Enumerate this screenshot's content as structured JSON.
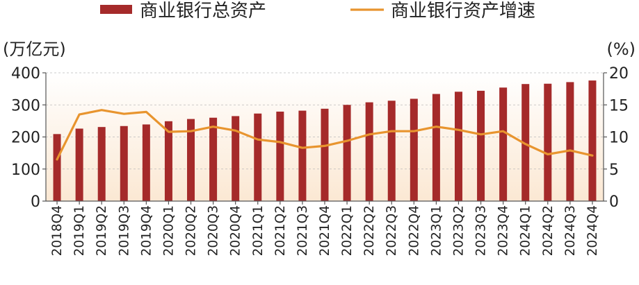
{
  "chart_data": {
    "type": "bar",
    "categories": [
      "2018Q4",
      "2019Q1",
      "2019Q2",
      "2019Q3",
      "2019Q4",
      "2020Q1",
      "2020Q2",
      "2020Q3",
      "2020Q4",
      "2021Q1",
      "2021Q2",
      "2021Q3",
      "2021Q4",
      "2022Q1",
      "2022Q2",
      "2022Q3",
      "2022Q4",
      "2023Q1",
      "2023Q2",
      "2023Q3",
      "2023Q4",
      "2024Q1",
      "2024Q2",
      "2024Q3",
      "2024Q4"
    ],
    "series": [
      {
        "name": "商业银行总资产",
        "type": "bar",
        "axis": "left",
        "color": "#a52a2a",
        "values": [
          209,
          226,
          231,
          234,
          239,
          249,
          256,
          260,
          265,
          273,
          279,
          282,
          288,
          300,
          308,
          313,
          319,
          334,
          341,
          344,
          354,
          365,
          366,
          371,
          376
        ]
      },
      {
        "name": "商业银行资产增速",
        "type": "line",
        "axis": "right",
        "color": "#e8942e",
        "values": [
          6.5,
          13.5,
          14.2,
          13.6,
          13.9,
          10.8,
          10.9,
          11.6,
          11.0,
          9.6,
          9.2,
          8.3,
          8.6,
          9.4,
          10.4,
          10.9,
          10.9,
          11.6,
          11.1,
          10.4,
          10.9,
          8.9,
          7.3,
          7.9,
          7.1
        ]
      }
    ],
    "y_left": {
      "unit": "(万亿元)",
      "ylim": [
        0,
        400
      ],
      "ticks": [
        0,
        100,
        200,
        300,
        400
      ]
    },
    "y_right": {
      "unit": "(%)",
      "ylim": [
        0,
        20
      ],
      "ticks": [
        0,
        5,
        10,
        15,
        20
      ]
    },
    "legend": {
      "placement": "top"
    },
    "grid": true
  }
}
